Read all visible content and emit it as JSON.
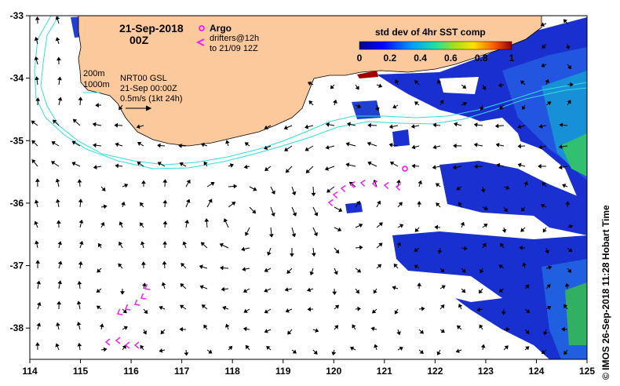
{
  "header": {
    "date": "21-Sep-2018",
    "time": "00Z"
  },
  "legend": {
    "argo_label": "Argo",
    "drifters_line1": "drifters@12h",
    "drifters_line2": "to 21/09 12Z",
    "argo_color": "#ff00ff"
  },
  "info": {
    "isobath_200": "200m",
    "isobath_1000": "1000m",
    "product": "NRT00 GSL",
    "datetime": "21-Sep 00:00Z",
    "scale": "0.5m/s (1kt 24h)"
  },
  "colorbar": {
    "title": "std dev of 4hr SST comp",
    "ticks": [
      "0",
      "0.2",
      "0.4",
      "0.6",
      "0.8",
      "1"
    ]
  },
  "axes": {
    "x_ticks": [
      "114",
      "115",
      "116",
      "117",
      "118",
      "119",
      "120",
      "121",
      "122",
      "123",
      "124",
      "125"
    ],
    "y_ticks": [
      "-33",
      "-34",
      "-35",
      "-36",
      "-37",
      "-38"
    ],
    "lon_range": [
      114,
      125
    ],
    "lat_range": [
      -38.5,
      -33
    ]
  },
  "credit": "© IMOS 26-Sep-2018 11:28 Hobart Time",
  "colors": {
    "land": "#fbc99c",
    "isobath": "#33dddd",
    "drifter": "#ee22ee"
  }
}
